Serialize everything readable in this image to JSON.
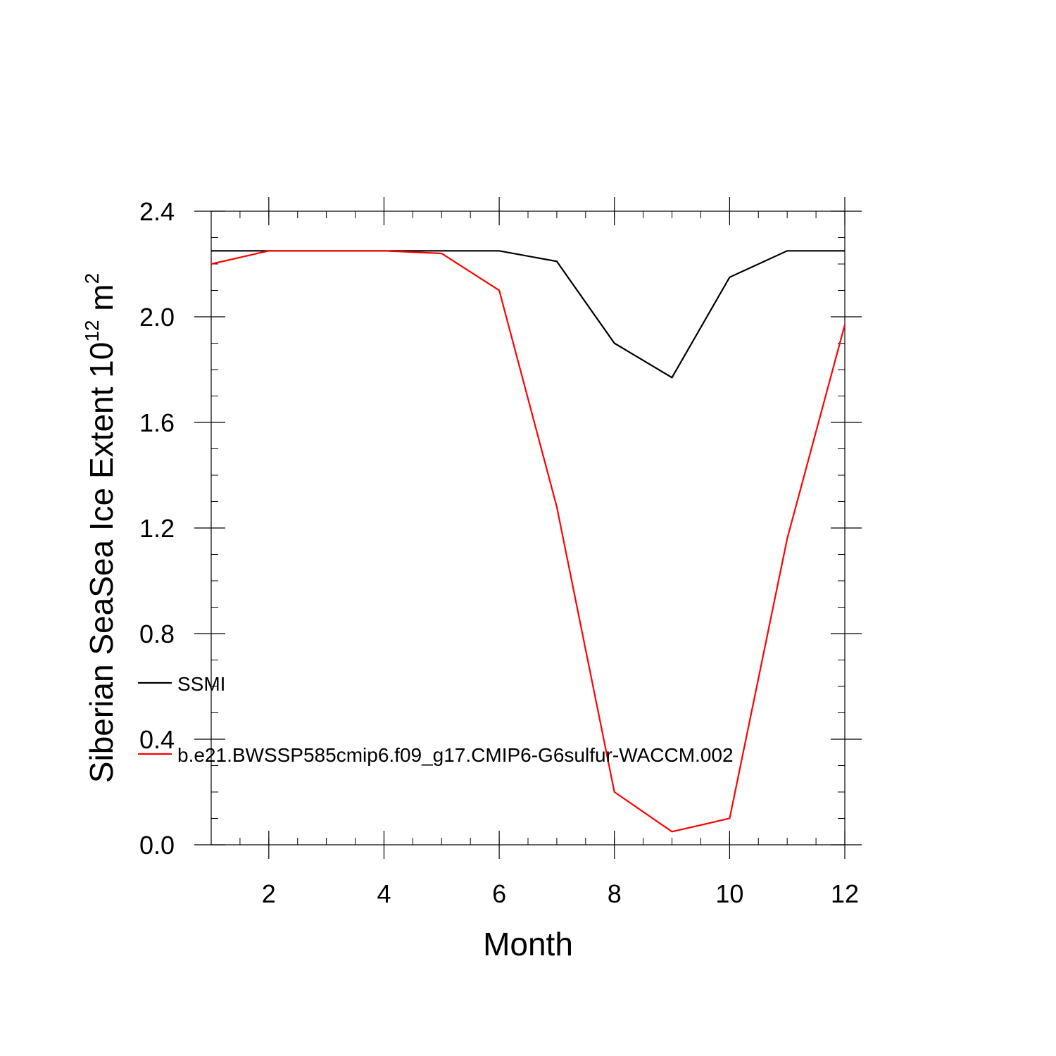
{
  "chart_data": {
    "type": "line",
    "xlabel": "Month",
    "ylabel": {
      "text": "Siberian SeaSea Ice Extent 10",
      "exponent": "12",
      "unit": " m",
      "unit_exponent": "2"
    },
    "xlim": [
      1,
      12
    ],
    "ylim": [
      0.0,
      2.4
    ],
    "x_ticks": [
      {
        "value": 2,
        "label": "2"
      },
      {
        "value": 4,
        "label": "4"
      },
      {
        "value": 6,
        "label": "6"
      },
      {
        "value": 8,
        "label": "8"
      },
      {
        "value": 10,
        "label": "10"
      },
      {
        "value": 12,
        "label": "12"
      }
    ],
    "y_ticks": [
      {
        "value": 0.0,
        "label": "0.0"
      },
      {
        "value": 0.4,
        "label": "0.4"
      },
      {
        "value": 0.8,
        "label": "0.8"
      },
      {
        "value": 1.2,
        "label": "1.2"
      },
      {
        "value": 1.6,
        "label": "1.6"
      },
      {
        "value": 2.0,
        "label": "2.0"
      },
      {
        "value": 2.4,
        "label": "2.4"
      }
    ],
    "x_minor_step": 0.5,
    "y_minor_step": 0.1,
    "grid": false,
    "legend_placement": "left, inside plot",
    "x": [
      1,
      2,
      3,
      4,
      5,
      6,
      7,
      8,
      9,
      10,
      11,
      12
    ],
    "series": [
      {
        "name": "SSMI",
        "color": "#000000",
        "values": [
          2.25,
          2.25,
          2.25,
          2.25,
          2.25,
          2.25,
          2.21,
          1.9,
          1.77,
          2.15,
          2.25,
          2.25
        ]
      },
      {
        "name": "b.e21.BWSSP585cmip6.f09_g17.CMIP6-G6sulfur-WACCM.002",
        "color": "#ff0000",
        "values": [
          2.2,
          2.25,
          2.25,
          2.25,
          2.24,
          2.1,
          1.28,
          0.2,
          0.05,
          0.1,
          1.16,
          1.97
        ]
      }
    ]
  }
}
